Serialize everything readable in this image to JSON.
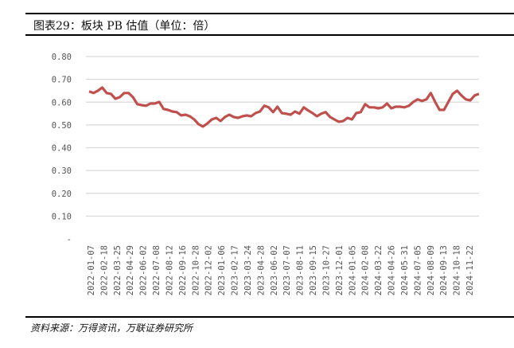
{
  "title": "图表29：板块 PB 估值（单位：倍）",
  "source": "资料来源：万得资讯，万联证券研究所",
  "colors": {
    "line": "#C0504D",
    "grid": "#D9D9D9"
  },
  "chart_data": {
    "type": "line",
    "title": "板块 PB 估值（单位：倍）",
    "xlabel": "",
    "ylabel": "",
    "ylim": [
      0,
      0.8
    ],
    "yticks": [
      0,
      0.1,
      0.2,
      0.3,
      0.4,
      0.5,
      0.6,
      0.7,
      0.8
    ],
    "ytick_labels": [
      "-",
      "0.10",
      "0.20",
      "0.30",
      "0.40",
      "0.50",
      "0.60",
      "0.70",
      "0.80"
    ],
    "grid": true,
    "xtick_labels": [
      "2022-01-07",
      "2022-02-18",
      "2022-03-25",
      "2022-04-29",
      "2022-06-02",
      "2022-07-08",
      "2022-08-12",
      "2022-09-16",
      "2022-10-28",
      "2022-12-02",
      "2023-01-06",
      "2023-02-17",
      "2023-03-24",
      "2023-04-28",
      "2023-06-02",
      "2023-07-07",
      "2023-08-11",
      "2023-09-15",
      "2023-10-27",
      "2023-12-01",
      "2024-01-05",
      "2024-02-08",
      "2024-03-22",
      "2024-04-26",
      "2024-05-31",
      "2024-07-05",
      "2024-08-09",
      "2024-09-13",
      "2024-10-18",
      "2024-11-22"
    ],
    "series": [
      {
        "name": "板块PB",
        "values": [
          0.647,
          0.64,
          0.65,
          0.664,
          0.64,
          0.636,
          0.615,
          0.622,
          0.64,
          0.64,
          0.622,
          0.591,
          0.587,
          0.584,
          0.594,
          0.594,
          0.601,
          0.57,
          0.566,
          0.559,
          0.556,
          0.542,
          0.545,
          0.538,
          0.524,
          0.503,
          0.493,
          0.507,
          0.524,
          0.531,
          0.517,
          0.535,
          0.545,
          0.535,
          0.531,
          0.538,
          0.542,
          0.538,
          0.552,
          0.559,
          0.584,
          0.577,
          0.556,
          0.58,
          0.552,
          0.549,
          0.545,
          0.559,
          0.549,
          0.577,
          0.563,
          0.552,
          0.538,
          0.549,
          0.556,
          0.535,
          0.524,
          0.514,
          0.517,
          0.531,
          0.524,
          0.552,
          0.556,
          0.591,
          0.577,
          0.577,
          0.573,
          0.577,
          0.594,
          0.573,
          0.58,
          0.58,
          0.577,
          0.584,
          0.601,
          0.612,
          0.605,
          0.612,
          0.64,
          0.601,
          0.566,
          0.566,
          0.601,
          0.636,
          0.65,
          0.629,
          0.612,
          0.608,
          0.629,
          0.636
        ]
      }
    ]
  }
}
